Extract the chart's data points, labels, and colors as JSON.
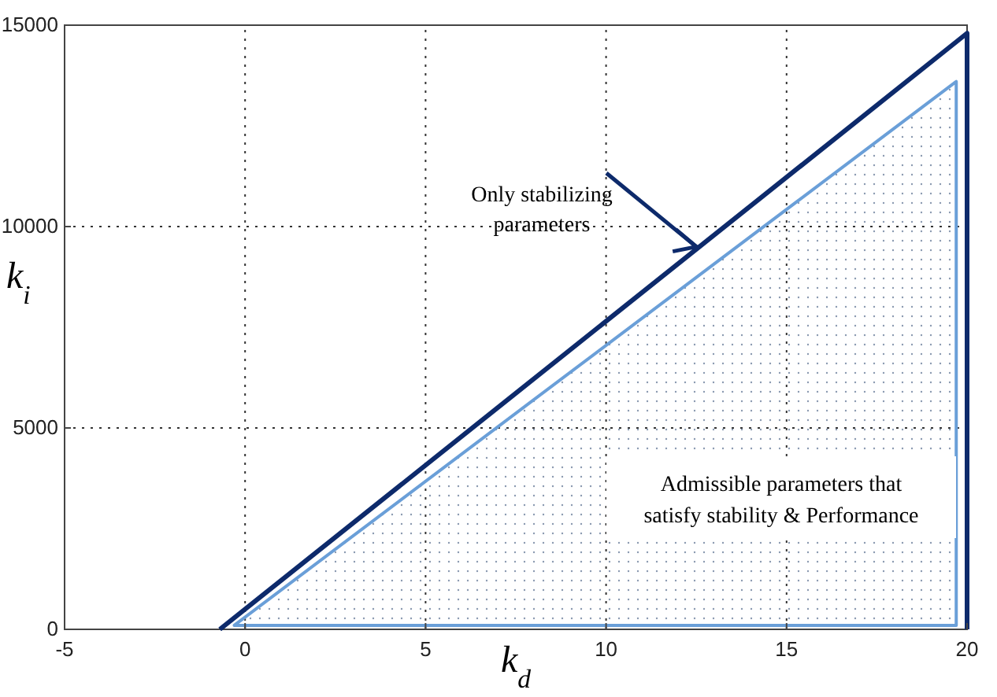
{
  "chart_data": {
    "type": "line",
    "xlabel": "k$_{d}$",
    "ylabel": "k$_{i}$",
    "xlim": [
      -5,
      20
    ],
    "ylim": [
      0,
      15000
    ],
    "xticks": [
      -5,
      0,
      5,
      10,
      15,
      20
    ],
    "yticks": [
      0,
      5000,
      10000,
      15000
    ],
    "grid": true,
    "line_style": "solid",
    "marker": "none",
    "series": [
      {
        "type": "area",
        "color": "#6a9fd8",
        "x": [
          -0.3,
          19.7,
          19.7,
          -0.3
        ],
        "values": [
          100,
          13600,
          100,
          100
        ]
      },
      {
        "color": "#0d2a6b",
        "x": [
          -0.7,
          20,
          20
        ],
        "values": [
          0,
          14800,
          0
        ]
      }
    ],
    "annotations": [
      {
        "text": "Only stabilizing parameters",
        "x": 12.5,
        "y": 9500
      },
      "Admissible parameters that satisfy stability & Performance"
    ]
  }
}
